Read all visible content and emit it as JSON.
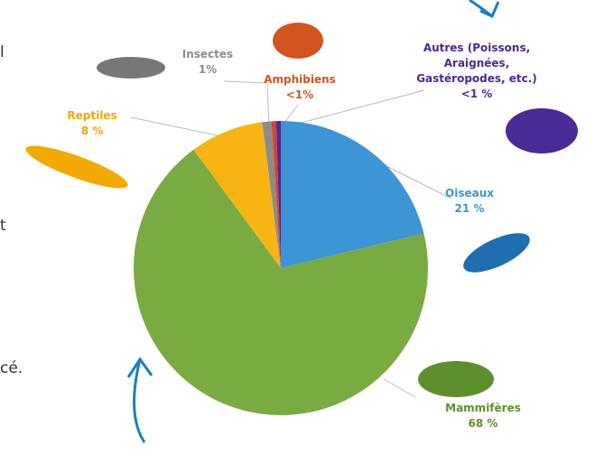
{
  "chart_data": {
    "type": "pie",
    "categories": [
      "Oiseaux",
      "Mammifères",
      "Reptiles",
      "Insectes",
      "Amphibiens",
      "Autres (Poissons, Araignées, Gastéropodes, etc.)"
    ],
    "values": [
      21,
      68,
      8,
      1,
      0.5,
      0.5
    ],
    "value_labels": [
      "21 %",
      "68 %",
      "8 %",
      "1%",
      "<1%",
      "<1 %"
    ],
    "colors": [
      "#3d95d5",
      "#7aab43",
      "#f6b512",
      "#8c8c8c",
      "#d9442c",
      "#4a2a95"
    ],
    "label_colors": [
      "#3d95d5",
      "#5f8f2c",
      "#f2a900",
      "#8c8c8c",
      "#d4541f",
      "#4a2a95"
    ]
  },
  "side_text": [
    "l",
    "t",
    "cé."
  ]
}
